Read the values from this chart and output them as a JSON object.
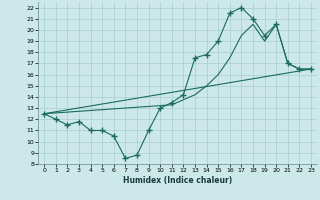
{
  "background_color": "#cce8e8",
  "grid_color": "#aacece",
  "line_color": "#1a6b5a",
  "line_width": 0.8,
  "marker": "+",
  "marker_size": 4,
  "marker_linewidth": 1.0,
  "xlabel": "Humidex (Indice chaleur)",
  "xlim": [
    -0.5,
    23.5
  ],
  "ylim": [
    8,
    22.5
  ],
  "xticks": [
    0,
    1,
    2,
    3,
    4,
    5,
    6,
    7,
    8,
    9,
    10,
    11,
    12,
    13,
    14,
    15,
    16,
    17,
    18,
    19,
    20,
    21,
    22,
    23
  ],
  "yticks": [
    8,
    9,
    10,
    11,
    12,
    13,
    14,
    15,
    16,
    17,
    18,
    19,
    20,
    21,
    22
  ],
  "series1_x": [
    0,
    1,
    2,
    3,
    4,
    5,
    6,
    7,
    8,
    9,
    10,
    11,
    12,
    13,
    14,
    15,
    16,
    17,
    18,
    19,
    20,
    21,
    22,
    23
  ],
  "series1_y": [
    12.5,
    12.0,
    11.5,
    11.8,
    11.0,
    11.0,
    10.5,
    8.5,
    8.8,
    11.0,
    13.0,
    13.5,
    14.2,
    17.5,
    17.8,
    19.0,
    21.5,
    22.0,
    21.0,
    19.5,
    20.5,
    17.0,
    16.5,
    16.5
  ],
  "series2_x": [
    0,
    23
  ],
  "series2_y": [
    12.5,
    16.5
  ],
  "series3_x": [
    0,
    11,
    13,
    14,
    15,
    16,
    17,
    18,
    19,
    20,
    21,
    22,
    23
  ],
  "series3_y": [
    12.5,
    13.3,
    14.2,
    15.0,
    16.0,
    17.5,
    19.5,
    20.5,
    19.0,
    20.5,
    17.0,
    16.5,
    16.5
  ]
}
